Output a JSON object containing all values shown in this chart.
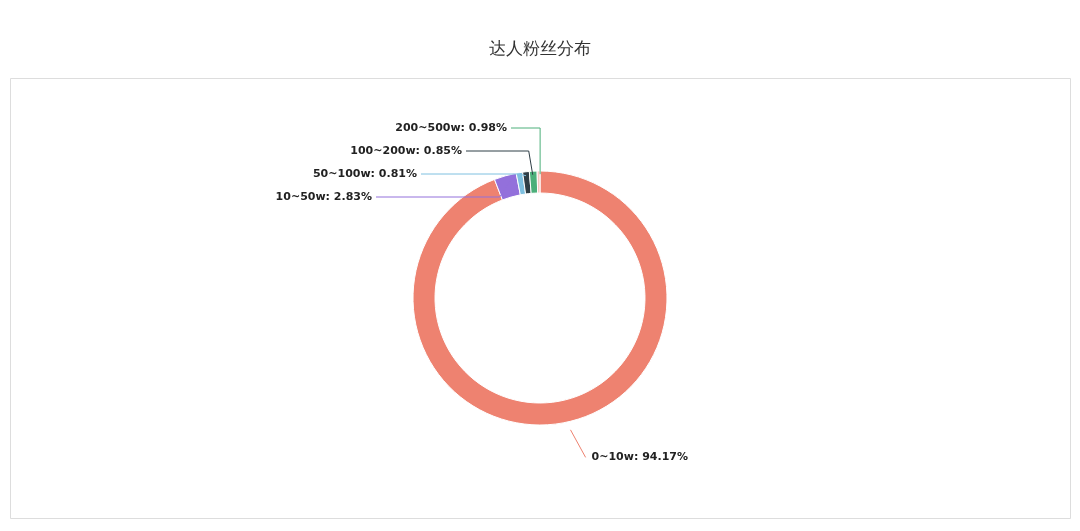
{
  "chart_data": {
    "type": "donut",
    "title": "达人粉丝分布",
    "categories": [
      "0~10w",
      "10~50w",
      "50~100w",
      "100~200w",
      "200~500w",
      null
    ],
    "values": [
      94.17,
      2.83,
      0.81,
      0.85,
      0.98,
      0.36
    ],
    "colors": [
      "#ee8270",
      "#9370db",
      "#7ec0e0",
      "#2f3e46",
      "#4caf7a",
      "#f5c6c0"
    ],
    "value_labels": [
      "94.17%",
      "2.83%",
      "0.81%",
      "0.85%",
      "0.98%",
      null
    ]
  }
}
